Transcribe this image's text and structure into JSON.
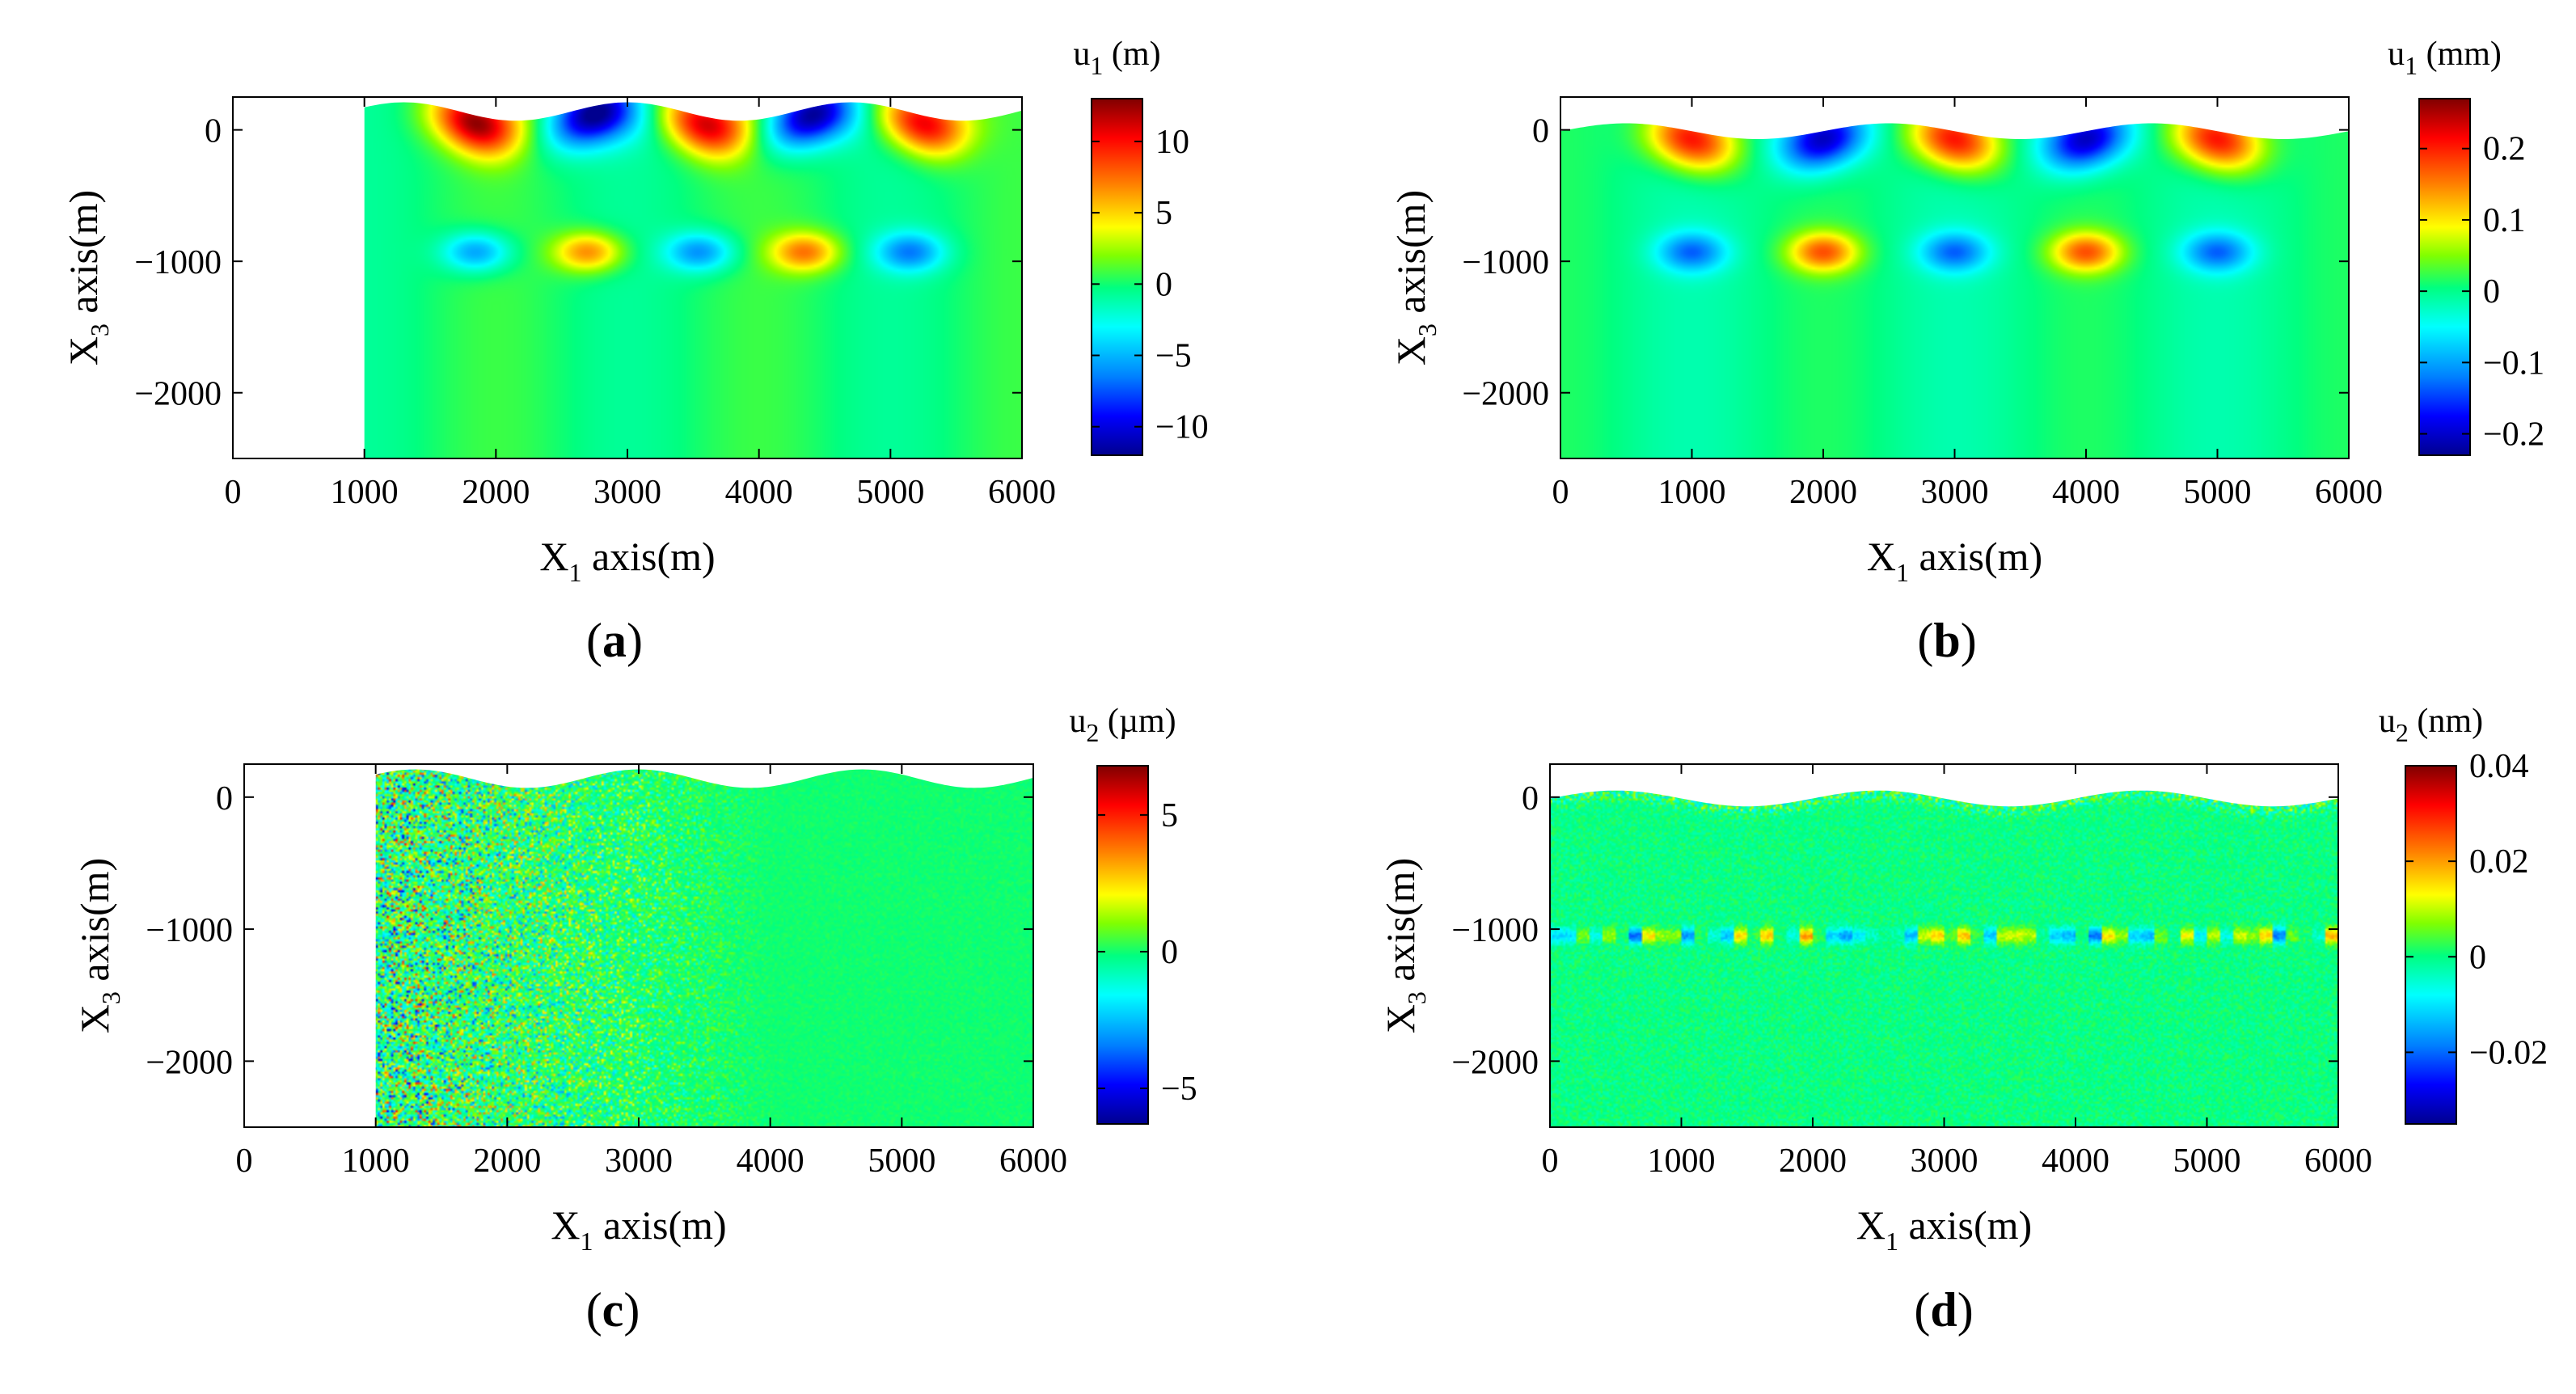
{
  "figure": {
    "panels_label_note": "four-panel displacement field figure",
    "colormap": [
      "#00008f",
      "#0000ff",
      "#0080ff",
      "#00ffff",
      "#00ff80",
      "#80ff00",
      "#ffff00",
      "#ff8000",
      "#ff0000",
      "#800000"
    ]
  },
  "chart_data": [
    {
      "type": "heatmap",
      "panel": "(a)",
      "panel_label": {
        "open": "(",
        "letter": "a",
        "close": ")"
      },
      "xlabel": {
        "main": "X",
        "sub": "1",
        "rest": " axis(m)"
      },
      "ylabel": {
        "main": "X",
        "sub": "3",
        "rest": " axis(m)"
      },
      "xlim": [
        0,
        6000
      ],
      "ylim": [
        -2500,
        250
      ],
      "xticks": [
        0,
        1000,
        2000,
        3000,
        4000,
        5000,
        6000
      ],
      "yticks": [
        0,
        -1000,
        -2000
      ],
      "domain_x_start": 1000,
      "colorbar": {
        "title_main": "u",
        "title_sub": "1",
        "title_unit": " (m)",
        "range": [
          -12,
          13
        ],
        "ticks": [
          10,
          5,
          0,
          -5,
          -10
        ],
        "tick_labels": [
          "10",
          "5",
          "0",
          "−5",
          "−10"
        ]
      },
      "field": {
        "surface_wavelength": 1700,
        "surface_amp": 70,
        "surface_phase": 4700,
        "surface_mean": 140,
        "top_blobs": [
          {
            "x": 1850,
            "v": 12
          },
          {
            "x": 2750,
            "v": -12
          },
          {
            "x": 3600,
            "v": 11
          },
          {
            "x": 4400,
            "v": -12
          },
          {
            "x": 5250,
            "v": 11
          }
        ],
        "mid_blobs": [
          {
            "x": 1850,
            "v": -6
          },
          {
            "x": 2700,
            "v": 7
          },
          {
            "x": 3550,
            "v": -6
          },
          {
            "x": 4350,
            "v": 7
          },
          {
            "x": 5150,
            "v": -6
          }
        ]
      }
    },
    {
      "type": "heatmap",
      "panel": "(b)",
      "panel_label": {
        "open": "(",
        "letter": "b",
        "close": ")"
      },
      "xlabel": {
        "main": "X",
        "sub": "1",
        "rest": " axis(m)"
      },
      "ylabel": {
        "main": "X",
        "sub": "3",
        "rest": " axis(m)"
      },
      "xlim": [
        0,
        6000
      ],
      "ylim": [
        -2500,
        250
      ],
      "xticks": [
        0,
        1000,
        2000,
        3000,
        4000,
        5000,
        6000
      ],
      "yticks": [
        0,
        -1000,
        -2000
      ],
      "domain_x_start": 0,
      "colorbar": {
        "title_main": "u",
        "title_sub": "1",
        "title_unit": " (mm)",
        "range": [
          -0.23,
          0.27
        ],
        "ticks": [
          0.2,
          0.1,
          0,
          -0.1,
          -0.2
        ],
        "tick_labels": [
          "0.2",
          "0.1",
          "0",
          "−0.1",
          "−0.2"
        ]
      },
      "field": {
        "surface_wavelength": 2000,
        "surface_amp": 60,
        "surface_phase": 4500,
        "surface_mean": -10,
        "top_blobs": [
          {
            "x": 1000,
            "v": 0.22
          },
          {
            "x": 2000,
            "v": -0.22
          },
          {
            "x": 3000,
            "v": 0.22
          },
          {
            "x": 4000,
            "v": -0.22
          },
          {
            "x": 5000,
            "v": 0.22
          }
        ],
        "mid_blobs": [
          {
            "x": 1000,
            "v": -0.12
          },
          {
            "x": 2000,
            "v": 0.16
          },
          {
            "x": 3000,
            "v": -0.12
          },
          {
            "x": 4000,
            "v": 0.16
          },
          {
            "x": 5000,
            "v": -0.12
          }
        ]
      }
    },
    {
      "type": "heatmap",
      "panel": "(c)",
      "panel_label": {
        "open": "(",
        "letter": "c",
        "close": ")"
      },
      "xlabel": {
        "main": "X",
        "sub": "1",
        "rest": " axis(m)"
      },
      "ylabel": {
        "main": "X",
        "sub": "3",
        "rest": " axis(m)"
      },
      "xlim": [
        0,
        6000
      ],
      "ylim": [
        -2500,
        250
      ],
      "xticks": [
        0,
        1000,
        2000,
        3000,
        4000,
        5000,
        6000
      ],
      "yticks": [
        0,
        -1000,
        -2000
      ],
      "domain_x_start": 1000,
      "colorbar": {
        "title_main": "u",
        "title_sub": "2",
        "title_unit": " (µm)",
        "range": [
          -6.3,
          6.8
        ],
        "ticks": [
          5,
          0,
          -5
        ],
        "tick_labels": [
          "5",
          "0",
          "−5"
        ]
      },
      "field": {
        "surface_wavelength": 1700,
        "surface_amp": 70,
        "surface_phase": 4700,
        "surface_mean": 140,
        "noise_peak": 5.5
      }
    },
    {
      "type": "heatmap",
      "panel": "(d)",
      "panel_label": {
        "open": "(",
        "letter": "d",
        "close": ")"
      },
      "xlabel": {
        "main": "X",
        "sub": "1",
        "rest": " axis(m)"
      },
      "ylabel": {
        "main": "X",
        "sub": "3",
        "rest": " axis(m)"
      },
      "xlim": [
        0,
        6000
      ],
      "ylim": [
        -2500,
        250
      ],
      "xticks": [
        0,
        1000,
        2000,
        3000,
        4000,
        5000,
        6000
      ],
      "yticks": [
        0,
        -1000,
        -2000
      ],
      "domain_x_start": 0,
      "colorbar": {
        "title_main": "u",
        "title_sub": "2",
        "title_unit": " (nm)",
        "range": [
          -0.035,
          0.04
        ],
        "ticks": [
          0.04,
          0.02,
          0,
          -0.02
        ],
        "tick_labels": [
          "0.04",
          "0.02",
          "0",
          "−0.02"
        ]
      },
      "field": {
        "surface_wavelength": 2000,
        "surface_amp": 60,
        "surface_phase": 4500,
        "surface_mean": -10,
        "band_y": -1050,
        "band_amp": 0.02,
        "noise_peak": 0.006
      }
    }
  ]
}
